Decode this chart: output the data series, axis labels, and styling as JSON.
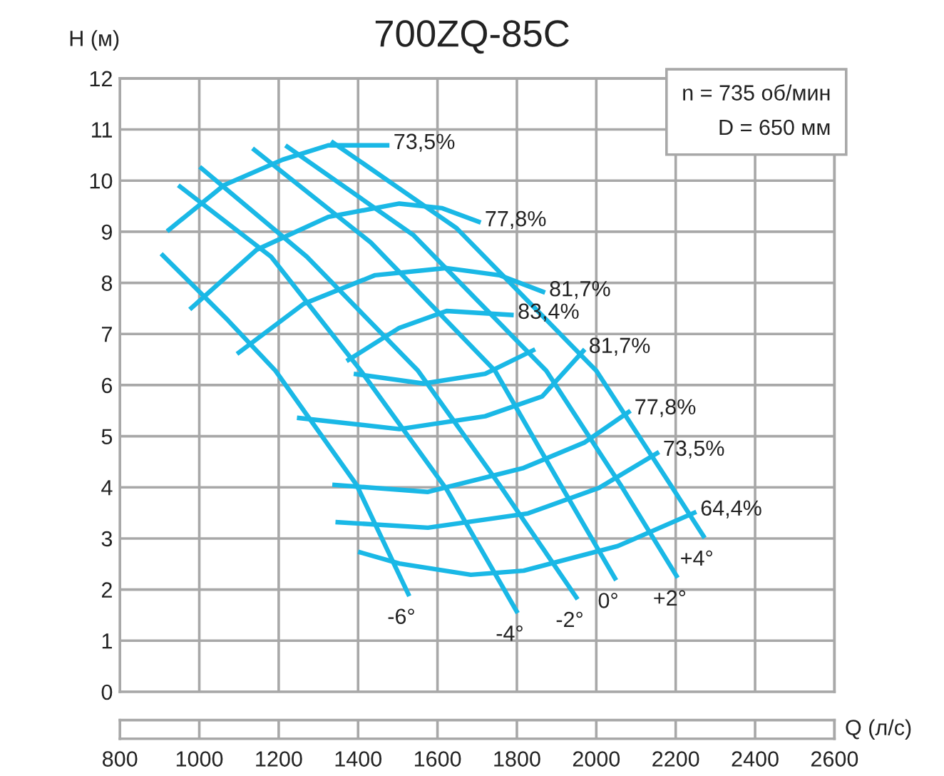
{
  "chart_data": {
    "type": "line",
    "title": "700ZQ-85C",
    "xlabel": "Q (л/с)",
    "ylabel": "H (м)",
    "xlim": [
      800,
      2600
    ],
    "xticks": [
      800,
      1000,
      1200,
      1400,
      1600,
      1800,
      2000,
      2200,
      2400,
      2600
    ],
    "ylim": [
      0,
      12
    ],
    "yticks": [
      0,
      1,
      2,
      3,
      4,
      5,
      6,
      7,
      8,
      9,
      10,
      11,
      12
    ],
    "grid": true,
    "marker": "none",
    "line_style": "solid",
    "series": [
      {
        "name": "-6°",
        "color": "#1ab8e6",
        "x": [
          904,
          1073,
          1192,
          1396,
          1529
        ],
        "values": [
          8.57,
          7.26,
          6.28,
          4.05,
          1.87
        ]
      },
      {
        "name": "-4°",
        "color": "#1ab8e6",
        "x": [
          947,
          1181,
          1407,
          1623,
          1802
        ],
        "values": [
          9.91,
          8.51,
          6.28,
          3.96,
          1.54
        ]
      },
      {
        "name": "-2°",
        "color": "#1ab8e6",
        "x": [
          1001,
          1271,
          1551,
          1756,
          1953
        ],
        "values": [
          10.27,
          8.51,
          6.28,
          4.05,
          1.81
        ]
      },
      {
        "name": "0°",
        "color": "#1ab8e6",
        "x": [
          1134,
          1432,
          1745,
          1910,
          2050
        ],
        "values": [
          10.63,
          8.79,
          6.28,
          4.05,
          2.18
        ]
      },
      {
        "name": "+2°",
        "color": "#1ab8e6",
        "x": [
          1217,
          1540,
          1874,
          2061,
          2205
        ],
        "values": [
          10.69,
          8.93,
          6.28,
          4.05,
          2.23
        ]
      },
      {
        "name": "+4°",
        "color": "#1ab8e6",
        "x": [
          1332,
          1648,
          2000,
          2187,
          2273
        ],
        "values": [
          10.77,
          9.07,
          6.28,
          4.05,
          3.01
        ]
      },
      {
        "name": "73,5%",
        "color": "#1ab8e6",
        "x": [
          919,
          1062,
          1210,
          1325,
          1479
        ],
        "values": [
          9.01,
          9.91,
          10.41,
          10.69,
          10.69
        ]
      },
      {
        "name": "77,8%",
        "color": "#1ab8e6",
        "x": [
          976,
          1145,
          1325,
          1504,
          1612,
          1709
        ],
        "values": [
          7.48,
          8.65,
          9.29,
          9.55,
          9.46,
          9.18
        ]
      },
      {
        "name": "81,7%",
        "color": "#1ab8e6",
        "x": [
          1095,
          1263,
          1443,
          1623,
          1756,
          1871
        ],
        "values": [
          6.61,
          7.59,
          8.15,
          8.29,
          8.15,
          7.81
        ]
      },
      {
        "name": "83,4%",
        "color": "#1ab8e6",
        "x": [
          1371,
          1504,
          1623,
          1792
        ],
        "values": [
          6.47,
          7.12,
          7.45,
          7.37
        ]
      },
      {
        "color": "#1ab8e6",
        "x": [
          1389,
          1565,
          1720,
          1846
        ],
        "values": [
          6.22,
          6.03,
          6.22,
          6.7
        ]
      },
      {
        "name": "81,7%",
        "color": "#1ab8e6",
        "x": [
          1246,
          1504,
          1720,
          1864,
          1971
        ],
        "values": [
          5.36,
          5.14,
          5.39,
          5.78,
          6.7
        ]
      },
      {
        "name": "77,8%",
        "color": "#1ab8e6",
        "x": [
          1335,
          1576,
          1817,
          1971,
          2086
        ],
        "values": [
          4.05,
          3.91,
          4.38,
          4.88,
          5.5
        ]
      },
      {
        "name": "73,5%",
        "color": "#1ab8e6",
        "x": [
          1343,
          1576,
          1828,
          2007,
          2158
        ],
        "values": [
          3.32,
          3.21,
          3.49,
          3.99,
          4.69
        ]
      },
      {
        "name": "64,4%",
        "color": "#1ab8e6",
        "x": [
          1400,
          1504,
          1684,
          1817,
          2054,
          2252
        ],
        "values": [
          2.74,
          2.51,
          2.29,
          2.37,
          2.85,
          3.52
        ]
      }
    ],
    "annotations": [
      "n = 735 об/мин\nD = 650 мм"
    ]
  }
}
